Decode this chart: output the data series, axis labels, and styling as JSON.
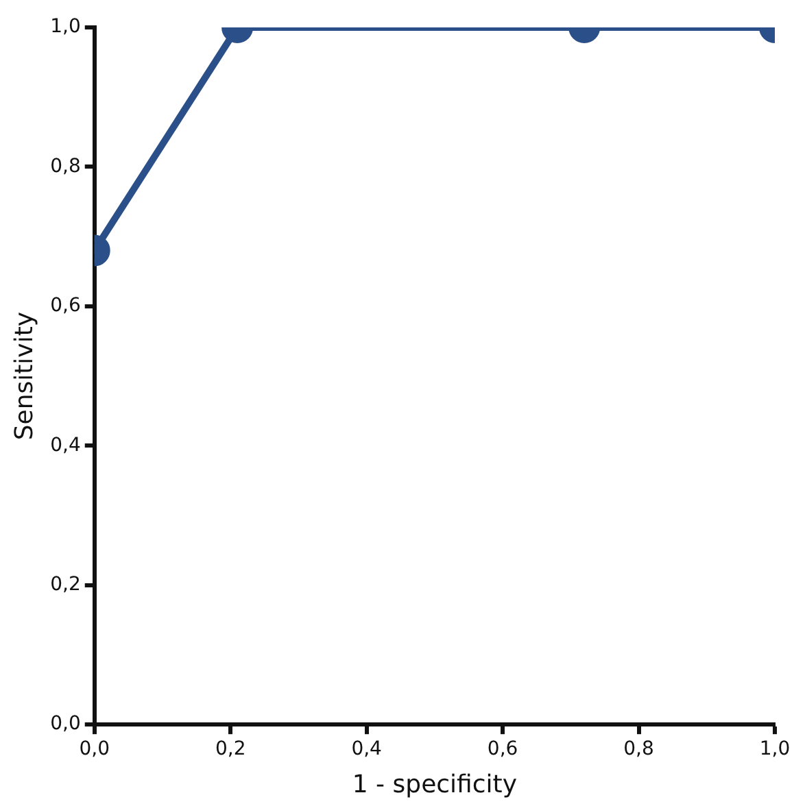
{
  "chart_data": {
    "type": "line",
    "xlabel": "1 - specificity",
    "ylabel": "Sensitivity",
    "x": [
      0,
      0.21,
      0.72,
      1.0
    ],
    "series": [
      {
        "color": "#2b5089",
        "values": [
          0.68,
          1.0,
          1.0,
          1.0
        ]
      }
    ],
    "xlim": [
      0,
      1
    ],
    "ylim": [
      0,
      1
    ],
    "xticks": [
      {
        "value": 0,
        "label": "0,0"
      },
      {
        "value": 0.2,
        "label": "0,2"
      },
      {
        "value": 0.4,
        "label": "0,4"
      },
      {
        "value": 0.6,
        "label": "0,6"
      },
      {
        "value": 0.8,
        "label": "0,8"
      },
      {
        "value": 1,
        "label": "1,0"
      }
    ],
    "yticks": [
      {
        "value": 0,
        "label": "0,0"
      },
      {
        "value": 0.2,
        "label": "0,2"
      },
      {
        "value": 0.4,
        "label": "0,4"
      },
      {
        "value": 0.6,
        "label": "0,6"
      },
      {
        "value": 0.8,
        "label": "0,8"
      },
      {
        "value": 1,
        "label": "1,0"
      }
    ],
    "grid": false,
    "legend": false,
    "marker": "circle",
    "line_style": "solid"
  }
}
